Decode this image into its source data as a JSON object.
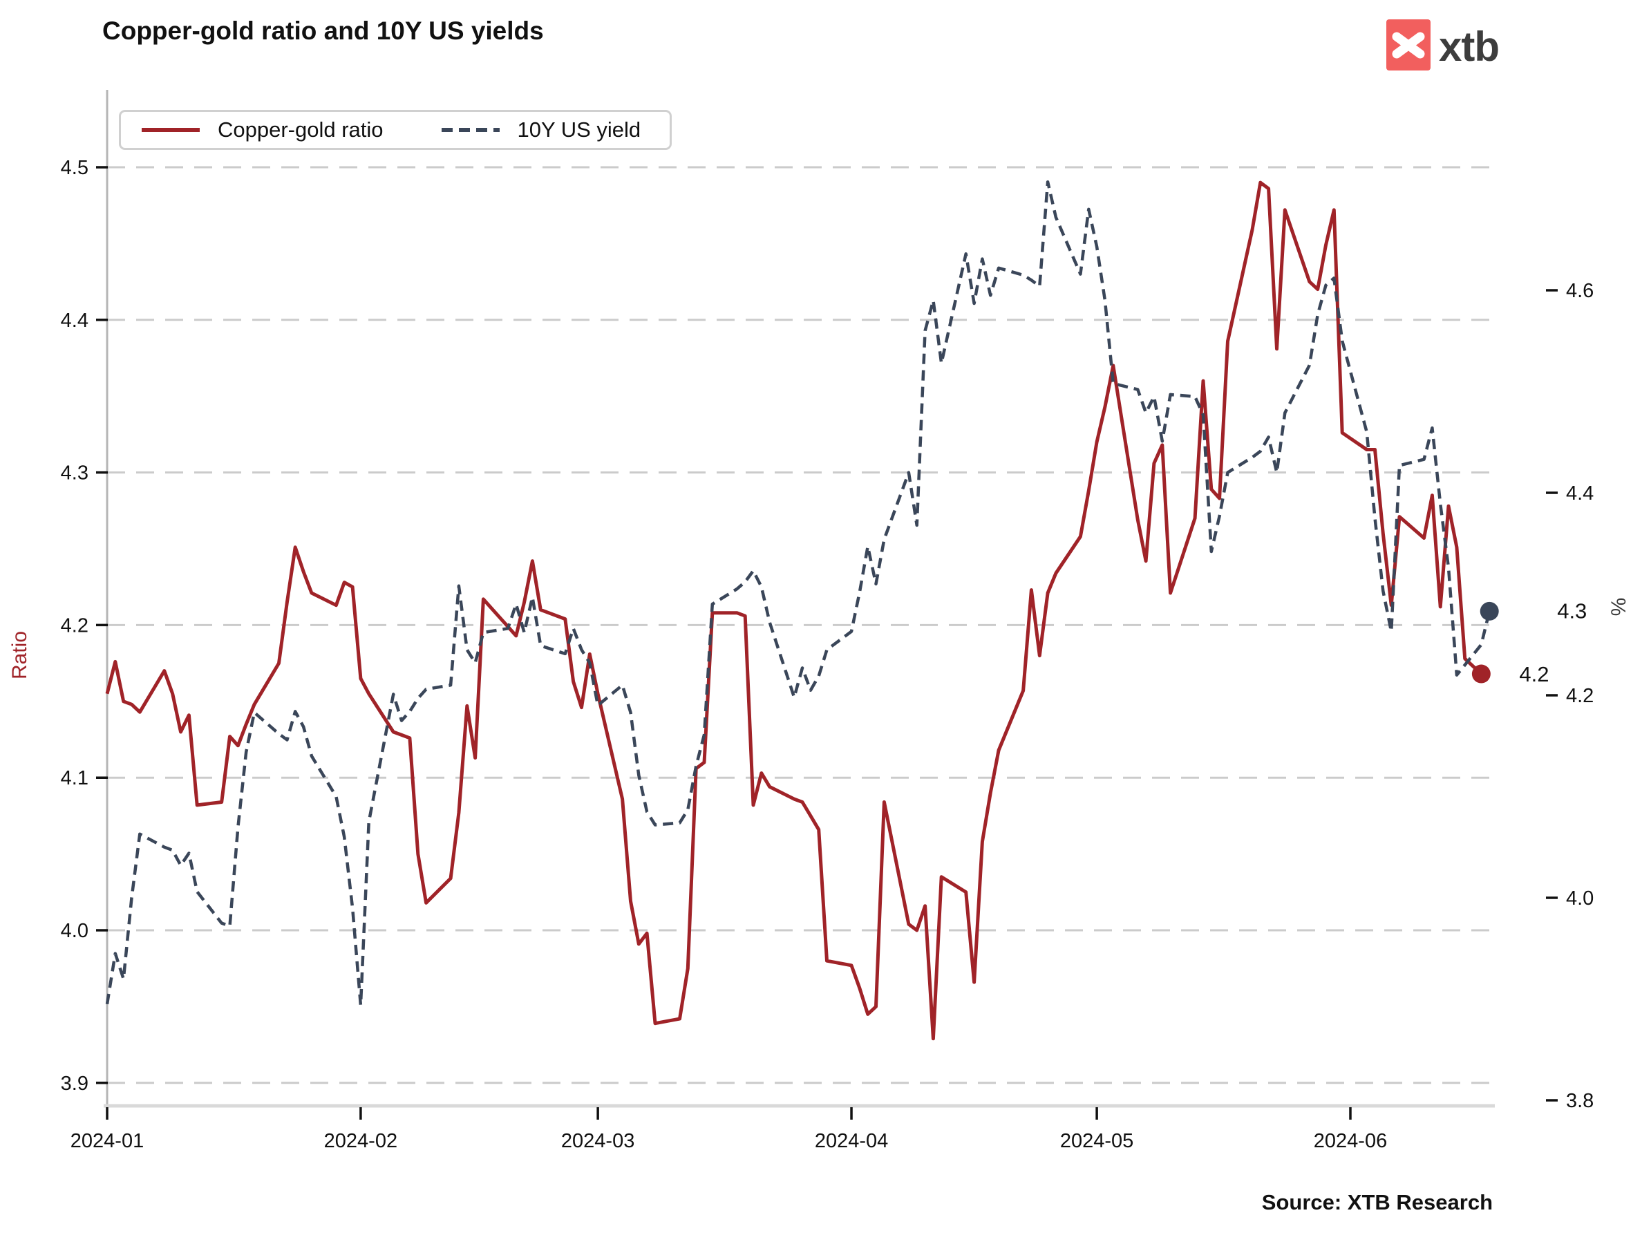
{
  "header": {
    "title": "Copper-gold ratio and 10Y US yields",
    "logo_text": "xtb"
  },
  "legend": {
    "items": [
      {
        "label": "Copper-gold ratio",
        "style": "solid"
      },
      {
        "label": "10Y US yield",
        "style": "dashed"
      }
    ]
  },
  "footer": {
    "source": "Source: XTB Research"
  },
  "colors": {
    "copper_gold": "#A02328",
    "yield_line": "#3A4659",
    "grid": "#CBCBCB",
    "axis_line": "#B5B5B5",
    "baseline": "#D9D9D9",
    "tick_text": "#111111",
    "ratio_label": "#A02328",
    "percent_label": "#3A3A3A",
    "logo_red": "#F25F5E",
    "logo_text": "#3D3D3D"
  },
  "chart_data": {
    "type": "line",
    "title": "Copper-gold ratio and 10Y US yields",
    "grid": true,
    "legend_position": "top-left",
    "x_axis": {
      "start": "2024-01-01",
      "end": "2024-06-18",
      "ticks": [
        "2024-01",
        "2024-02",
        "2024-03",
        "2024-04",
        "2024-05",
        "2024-06"
      ]
    },
    "left_axis": {
      "label": "Ratio",
      "ticks": [
        4.5,
        4.4,
        4.3,
        4.2,
        4.1,
        4.0,
        3.9
      ]
    },
    "right_axis": {
      "label": "%",
      "ticks": [
        4.6,
        4.4,
        4.2,
        4.0,
        3.8
      ]
    },
    "end_labels": {
      "copper_gold": "4.2",
      "yield": "4.3"
    },
    "series": [
      {
        "name": "Copper-gold ratio",
        "axis": "left",
        "style": "solid",
        "color": "#A02328",
        "points": [
          [
            "2024-01-01",
            4.155
          ],
          [
            "2024-01-02",
            4.176
          ],
          [
            "2024-01-03",
            4.15
          ],
          [
            "2024-01-04",
            4.148
          ],
          [
            "2024-01-05",
            4.143
          ],
          [
            "2024-01-08",
            4.17
          ],
          [
            "2024-01-09",
            4.155
          ],
          [
            "2024-01-10",
            4.13
          ],
          [
            "2024-01-11",
            4.141
          ],
          [
            "2024-01-12",
            4.082
          ],
          [
            "2024-01-15",
            4.084
          ],
          [
            "2024-01-16",
            4.127
          ],
          [
            "2024-01-17",
            4.121
          ],
          [
            "2024-01-18",
            4.135
          ],
          [
            "2024-01-19",
            4.148
          ],
          [
            "2024-01-22",
            4.175
          ],
          [
            "2024-01-23",
            4.215
          ],
          [
            "2024-01-24",
            4.251
          ],
          [
            "2024-01-25",
            4.235
          ],
          [
            "2024-01-26",
            4.221
          ],
          [
            "2024-01-29",
            4.213
          ],
          [
            "2024-01-30",
            4.228
          ],
          [
            "2024-01-31",
            4.225
          ],
          [
            "2024-02-01",
            4.165
          ],
          [
            "2024-02-02",
            4.155
          ],
          [
            "2024-02-05",
            4.13
          ],
          [
            "2024-02-06",
            4.128
          ],
          [
            "2024-02-07",
            4.126
          ],
          [
            "2024-02-08",
            4.05
          ],
          [
            "2024-02-09",
            4.018
          ],
          [
            "2024-02-12",
            4.034
          ],
          [
            "2024-02-13",
            4.077
          ],
          [
            "2024-02-14",
            4.147
          ],
          [
            "2024-02-15",
            4.113
          ],
          [
            "2024-02-16",
            4.217
          ],
          [
            "2024-02-19",
            4.199
          ],
          [
            "2024-02-20",
            4.193
          ],
          [
            "2024-02-21",
            4.215
          ],
          [
            "2024-02-22",
            4.242
          ],
          [
            "2024-02-23",
            4.21
          ],
          [
            "2024-02-26",
            4.204
          ],
          [
            "2024-02-27",
            4.163
          ],
          [
            "2024-02-28",
            4.146
          ],
          [
            "2024-02-29",
            4.181
          ],
          [
            "2024-03-01",
            4.155
          ],
          [
            "2024-03-04",
            4.086
          ],
          [
            "2024-03-05",
            4.019
          ],
          [
            "2024-03-06",
            3.991
          ],
          [
            "2024-03-07",
            3.998
          ],
          [
            "2024-03-08",
            3.939
          ],
          [
            "2024-03-11",
            3.942
          ],
          [
            "2024-03-12",
            3.975
          ],
          [
            "2024-03-13",
            4.106
          ],
          [
            "2024-03-14",
            4.11
          ],
          [
            "2024-03-15",
            4.208
          ],
          [
            "2024-03-18",
            4.208
          ],
          [
            "2024-03-19",
            4.206
          ],
          [
            "2024-03-20",
            4.082
          ],
          [
            "2024-03-21",
            4.103
          ],
          [
            "2024-03-22",
            4.094
          ],
          [
            "2024-03-25",
            4.086
          ],
          [
            "2024-03-26",
            4.084
          ],
          [
            "2024-03-27",
            4.075
          ],
          [
            "2024-03-28",
            4.066
          ],
          [
            "2024-03-29",
            3.98
          ],
          [
            "2024-04-01",
            3.977
          ],
          [
            "2024-04-02",
            3.962
          ],
          [
            "2024-04-03",
            3.945
          ],
          [
            "2024-04-04",
            3.95
          ],
          [
            "2024-04-05",
            4.084
          ],
          [
            "2024-04-08",
            4.004
          ],
          [
            "2024-04-09",
            4.0
          ],
          [
            "2024-04-10",
            4.016
          ],
          [
            "2024-04-11",
            3.929
          ],
          [
            "2024-04-12",
            4.035
          ],
          [
            "2024-04-15",
            4.025
          ],
          [
            "2024-04-16",
            3.966
          ],
          [
            "2024-04-17",
            4.058
          ],
          [
            "2024-04-18",
            4.09
          ],
          [
            "2024-04-19",
            4.118
          ],
          [
            "2024-04-22",
            4.157
          ],
          [
            "2024-04-23",
            4.223
          ],
          [
            "2024-04-24",
            4.18
          ],
          [
            "2024-04-25",
            4.221
          ],
          [
            "2024-04-26",
            4.234
          ],
          [
            "2024-04-29",
            4.258
          ],
          [
            "2024-04-30",
            4.288
          ],
          [
            "2024-05-01",
            4.32
          ],
          [
            "2024-05-02",
            4.343
          ],
          [
            "2024-05-03",
            4.37
          ],
          [
            "2024-05-06",
            4.269
          ],
          [
            "2024-05-07",
            4.242
          ],
          [
            "2024-05-08",
            4.306
          ],
          [
            "2024-05-09",
            4.318
          ],
          [
            "2024-05-10",
            4.221
          ],
          [
            "2024-05-13",
            4.27
          ],
          [
            "2024-05-14",
            4.36
          ],
          [
            "2024-05-15",
            4.289
          ],
          [
            "2024-05-16",
            4.283
          ],
          [
            "2024-05-17",
            4.386
          ],
          [
            "2024-05-20",
            4.459
          ],
          [
            "2024-05-21",
            4.49
          ],
          [
            "2024-05-22",
            4.486
          ],
          [
            "2024-05-23",
            4.381
          ],
          [
            "2024-05-24",
            4.472
          ],
          [
            "2024-05-27",
            4.425
          ],
          [
            "2024-05-28",
            4.42
          ],
          [
            "2024-05-29",
            4.449
          ],
          [
            "2024-05-30",
            4.472
          ],
          [
            "2024-05-31",
            4.326
          ],
          [
            "2024-06-03",
            4.315
          ],
          [
            "2024-06-04",
            4.315
          ],
          [
            "2024-06-05",
            4.26
          ],
          [
            "2024-06-06",
            4.213
          ],
          [
            "2024-06-07",
            4.271
          ],
          [
            "2024-06-10",
            4.257
          ],
          [
            "2024-06-11",
            4.285
          ],
          [
            "2024-06-12",
            4.212
          ],
          [
            "2024-06-13",
            4.278
          ],
          [
            "2024-06-14",
            4.251
          ],
          [
            "2024-06-15",
            4.178
          ],
          [
            "2024-06-17",
            4.168
          ]
        ]
      },
      {
        "name": "10Y US yield",
        "axis": "right",
        "style": "dashed",
        "color": "#3A4659",
        "points": [
          [
            "2024-01-01",
            3.895
          ],
          [
            "2024-01-02",
            3.945
          ],
          [
            "2024-01-03",
            3.92
          ],
          [
            "2024-01-04",
            4.0
          ],
          [
            "2024-01-05",
            4.063
          ],
          [
            "2024-01-08",
            4.05
          ],
          [
            "2024-01-09",
            4.047
          ],
          [
            "2024-01-10",
            4.032
          ],
          [
            "2024-01-11",
            4.044
          ],
          [
            "2024-01-12",
            4.006
          ],
          [
            "2024-01-15",
            3.975
          ],
          [
            "2024-01-16",
            3.972
          ],
          [
            "2024-01-17",
            4.07
          ],
          [
            "2024-01-18",
            4.144
          ],
          [
            "2024-01-19",
            4.183
          ],
          [
            "2024-01-22",
            4.162
          ],
          [
            "2024-01-23",
            4.156
          ],
          [
            "2024-01-24",
            4.184
          ],
          [
            "2024-01-25",
            4.169
          ],
          [
            "2024-01-26",
            4.14
          ],
          [
            "2024-01-29",
            4.1
          ],
          [
            "2024-01-30",
            4.06
          ],
          [
            "2024-01-31",
            3.99
          ],
          [
            "2024-02-01",
            3.894
          ],
          [
            "2024-02-02",
            4.075
          ],
          [
            "2024-02-05",
            4.201
          ],
          [
            "2024-02-06",
            4.175
          ],
          [
            "2024-02-07",
            4.184
          ],
          [
            "2024-02-08",
            4.197
          ],
          [
            "2024-02-09",
            4.206
          ],
          [
            "2024-02-12",
            4.21
          ],
          [
            "2024-02-13",
            4.308
          ],
          [
            "2024-02-14",
            4.245
          ],
          [
            "2024-02-15",
            4.232
          ],
          [
            "2024-02-16",
            4.262
          ],
          [
            "2024-02-19",
            4.266
          ],
          [
            "2024-02-20",
            4.29
          ],
          [
            "2024-02-21",
            4.262
          ],
          [
            "2024-02-22",
            4.297
          ],
          [
            "2024-02-23",
            4.249
          ],
          [
            "2024-02-26",
            4.241
          ],
          [
            "2024-02-27",
            4.266
          ],
          [
            "2024-02-28",
            4.245
          ],
          [
            "2024-02-29",
            4.232
          ],
          [
            "2024-03-01",
            4.19
          ],
          [
            "2024-03-04",
            4.21
          ],
          [
            "2024-03-05",
            4.183
          ],
          [
            "2024-03-06",
            4.121
          ],
          [
            "2024-03-07",
            4.085
          ],
          [
            "2024-03-08",
            4.072
          ],
          [
            "2024-03-11",
            4.074
          ],
          [
            "2024-03-12",
            4.087
          ],
          [
            "2024-03-13",
            4.13
          ],
          [
            "2024-03-14",
            4.161
          ],
          [
            "2024-03-15",
            4.29
          ],
          [
            "2024-03-18",
            4.305
          ],
          [
            "2024-03-19",
            4.312
          ],
          [
            "2024-03-20",
            4.323
          ],
          [
            "2024-03-21",
            4.307
          ],
          [
            "2024-03-22",
            4.272
          ],
          [
            "2024-03-25",
            4.198
          ],
          [
            "2024-03-26",
            4.227
          ],
          [
            "2024-03-27",
            4.205
          ],
          [
            "2024-03-28",
            4.219
          ],
          [
            "2024-03-29",
            4.245
          ],
          [
            "2024-04-01",
            4.263
          ],
          [
            "2024-04-02",
            4.302
          ],
          [
            "2024-04-03",
            4.347
          ],
          [
            "2024-04-04",
            4.31
          ],
          [
            "2024-04-05",
            4.354
          ],
          [
            "2024-04-08",
            4.42
          ],
          [
            "2024-04-09",
            4.368
          ],
          [
            "2024-04-10",
            4.56
          ],
          [
            "2024-04-11",
            4.59
          ],
          [
            "2024-04-12",
            4.528
          ],
          [
            "2024-04-15",
            4.636
          ],
          [
            "2024-04-16",
            4.587
          ],
          [
            "2024-04-17",
            4.631
          ],
          [
            "2024-04-18",
            4.595
          ],
          [
            "2024-04-19",
            4.622
          ],
          [
            "2024-04-22",
            4.615
          ],
          [
            "2024-04-23",
            4.61
          ],
          [
            "2024-04-24",
            4.604
          ],
          [
            "2024-04-25",
            4.707
          ],
          [
            "2024-04-26",
            4.672
          ],
          [
            "2024-04-29",
            4.616
          ],
          [
            "2024-04-30",
            4.68
          ],
          [
            "2024-05-01",
            4.643
          ],
          [
            "2024-05-02",
            4.59
          ],
          [
            "2024-05-03",
            4.508
          ],
          [
            "2024-05-06",
            4.502
          ],
          [
            "2024-05-07",
            4.479
          ],
          [
            "2024-05-08",
            4.495
          ],
          [
            "2024-05-09",
            4.451
          ],
          [
            "2024-05-10",
            4.497
          ],
          [
            "2024-05-13",
            4.495
          ],
          [
            "2024-05-14",
            4.477
          ],
          [
            "2024-05-15",
            4.342
          ],
          [
            "2024-05-16",
            4.377
          ],
          [
            "2024-05-17",
            4.42
          ],
          [
            "2024-05-20",
            4.435
          ],
          [
            "2024-05-21",
            4.441
          ],
          [
            "2024-05-22",
            4.455
          ],
          [
            "2024-05-23",
            4.42
          ],
          [
            "2024-05-24",
            4.479
          ],
          [
            "2024-05-27",
            4.526
          ],
          [
            "2024-05-28",
            4.576
          ],
          [
            "2024-05-29",
            4.605
          ],
          [
            "2024-05-30",
            4.612
          ],
          [
            "2024-05-31",
            4.55
          ],
          [
            "2024-06-03",
            4.46
          ],
          [
            "2024-06-04",
            4.375
          ],
          [
            "2024-06-05",
            4.303
          ],
          [
            "2024-06-06",
            4.263
          ],
          [
            "2024-06-07",
            4.427
          ],
          [
            "2024-06-10",
            4.433
          ],
          [
            "2024-06-11",
            4.464
          ],
          [
            "2024-06-12",
            4.389
          ],
          [
            "2024-06-13",
            4.326
          ],
          [
            "2024-06-14",
            4.22
          ],
          [
            "2024-06-17",
            4.25
          ],
          [
            "2024-06-18",
            4.283
          ]
        ]
      }
    ]
  }
}
